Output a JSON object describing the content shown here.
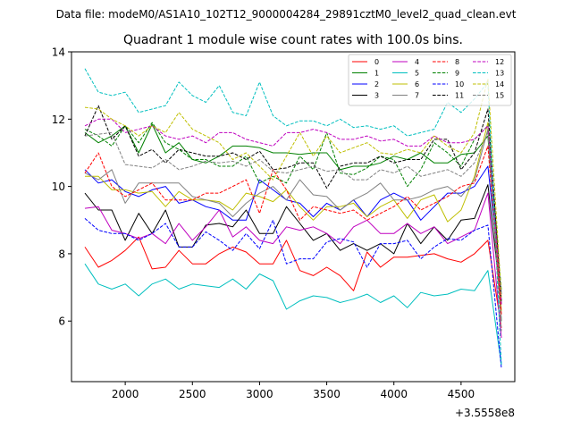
{
  "chart_data": {
    "type": "line",
    "suptitle": "Data file: modeM0/AS1A10_102T12_9000004284_29891cztM0_level2_quad_clean.evt",
    "title": "Quadrant 1 module wise count rates with 100.0s bins.",
    "xlabel": "",
    "ylabel": "",
    "x_offset_label": "+3.5558e8",
    "xlim": [
      1600,
      4900
    ],
    "ylim": [
      4.2,
      14.0
    ],
    "x_ticks": [
      2000,
      2500,
      3000,
      3500,
      4000,
      4500
    ],
    "x_tick_labels": [
      "2000",
      "2500",
      "3000",
      "3500",
      "4000",
      "4500"
    ],
    "y_ticks": [
      6,
      8,
      10,
      12,
      14
    ],
    "y_tick_labels": [
      "6",
      "8",
      "10",
      "12",
      "14"
    ],
    "grid": false,
    "legend_position": "top-right",
    "x": [
      1700,
      1800,
      1900,
      2000,
      2100,
      2200,
      2300,
      2400,
      2500,
      2600,
      2700,
      2800,
      2900,
      3000,
      3100,
      3200,
      3300,
      3400,
      3500,
      3600,
      3700,
      3800,
      3900,
      4000,
      4100,
      4200,
      4300,
      4400,
      4500,
      4600,
      4700,
      4800
    ],
    "series": [
      {
        "name": "0",
        "color": "#ff0000",
        "dash": "solid",
        "values": [
          8.2,
          7.6,
          7.8,
          8.1,
          8.5,
          7.55,
          7.6,
          8.1,
          7.7,
          7.7,
          8.0,
          8.2,
          8.05,
          7.7,
          7.7,
          8.4,
          7.5,
          7.35,
          7.6,
          7.35,
          6.9,
          8.05,
          7.6,
          7.9,
          7.9,
          7.95,
          8.0,
          7.85,
          7.75,
          8.0,
          8.4,
          5.8
        ]
      },
      {
        "name": "1",
        "color": "#008000",
        "dash": "solid",
        "values": [
          11.6,
          11.3,
          11.5,
          11.8,
          11.0,
          11.85,
          11.0,
          11.3,
          10.8,
          10.7,
          10.9,
          11.2,
          11.2,
          11.15,
          11.0,
          11.0,
          10.95,
          11.0,
          11.0,
          10.5,
          10.6,
          10.6,
          10.7,
          10.9,
          10.8,
          11.0,
          10.7,
          10.7,
          10.95,
          11.0,
          11.5,
          6.0
        ]
      },
      {
        "name": "2",
        "color": "#0000ff",
        "dash": "solid",
        "values": [
          10.5,
          10.1,
          10.2,
          9.85,
          9.7,
          9.9,
          10.0,
          9.5,
          9.6,
          9.4,
          9.3,
          9.0,
          9.0,
          10.2,
          9.9,
          9.6,
          9.5,
          9.1,
          9.5,
          9.3,
          9.6,
          9.1,
          9.6,
          9.8,
          9.6,
          9.0,
          9.4,
          9.8,
          9.8,
          10.0,
          10.6,
          6.8
        ]
      },
      {
        "name": "3",
        "color": "#000000",
        "dash": "solid",
        "values": [
          9.8,
          9.3,
          9.3,
          8.4,
          9.2,
          8.6,
          9.3,
          8.2,
          8.2,
          8.85,
          8.9,
          8.8,
          9.3,
          8.6,
          8.6,
          9.4,
          8.9,
          8.4,
          8.6,
          8.1,
          8.3,
          8.1,
          8.3,
          8.0,
          8.9,
          8.3,
          8.8,
          8.4,
          9.0,
          9.05,
          10.05,
          6.5
        ]
      },
      {
        "name": "4",
        "color": "#bf00bf",
        "dash": "solid",
        "values": [
          9.35,
          9.4,
          8.7,
          8.6,
          8.45,
          8.6,
          8.3,
          8.9,
          8.4,
          8.8,
          9.3,
          8.5,
          8.8,
          8.4,
          8.3,
          8.8,
          8.7,
          8.8,
          8.6,
          8.3,
          8.8,
          9.0,
          8.6,
          8.6,
          8.9,
          8.6,
          8.8,
          8.3,
          8.5,
          8.7,
          9.8,
          5.5
        ]
      },
      {
        "name": "5",
        "color": "#00bfbf",
        "dash": "solid",
        "values": [
          7.7,
          7.1,
          6.95,
          7.1,
          6.75,
          7.1,
          7.25,
          6.95,
          7.1,
          7.05,
          7.0,
          7.25,
          6.95,
          7.4,
          7.2,
          6.35,
          6.6,
          6.75,
          6.7,
          6.55,
          6.65,
          6.8,
          6.55,
          6.75,
          6.4,
          6.85,
          6.75,
          6.8,
          6.95,
          6.9,
          7.5,
          4.7
        ]
      },
      {
        "name": "6",
        "color": "#bfbf00",
        "dash": "solid",
        "values": [
          10.3,
          10.3,
          9.9,
          9.9,
          9.8,
          9.85,
          9.4,
          9.85,
          9.6,
          9.6,
          9.55,
          9.3,
          9.8,
          9.7,
          9.55,
          9.9,
          9.4,
          9.0,
          9.4,
          9.4,
          9.5,
          9.1,
          9.4,
          9.6,
          9.05,
          9.6,
          9.75,
          8.95,
          9.3,
          10.3,
          11.9,
          6.3
        ]
      },
      {
        "name": "7",
        "color": "#808080",
        "dash": "solid",
        "values": [
          10.4,
          10.2,
          10.5,
          9.5,
          10.1,
          10.1,
          10.1,
          10.1,
          9.7,
          9.6,
          9.5,
          9.1,
          9.5,
          9.8,
          10.0,
          9.6,
          10.2,
          9.75,
          9.7,
          9.3,
          9.6,
          9.8,
          10.1,
          9.6,
          9.6,
          9.7,
          9.9,
          10.0,
          9.7,
          10.2,
          11.7,
          6.0
        ]
      },
      {
        "name": "8",
        "color": "#ff0000",
        "dash": "dashed",
        "values": [
          10.4,
          11.0,
          10.0,
          9.7,
          9.9,
          10.1,
          9.6,
          9.6,
          9.6,
          9.8,
          9.8,
          10.0,
          10.2,
          9.2,
          10.5,
          9.9,
          9.0,
          9.4,
          9.3,
          9.2,
          9.3,
          9.0,
          9.2,
          9.4,
          9.7,
          9.3,
          9.5,
          9.7,
          10.0,
          10.1,
          11.2,
          6.2
        ]
      },
      {
        "name": "9",
        "color": "#008000",
        "dash": "dashed",
        "values": [
          11.7,
          11.5,
          11.2,
          11.8,
          11.3,
          11.9,
          11.3,
          11.1,
          10.8,
          10.8,
          10.6,
          10.6,
          10.9,
          10.1,
          10.3,
          10.1,
          10.9,
          10.5,
          11.6,
          10.4,
          10.35,
          10.55,
          10.9,
          10.8,
          10.0,
          10.5,
          11.3,
          11.0,
          10.6,
          11.4,
          11.8,
          6.9
        ]
      },
      {
        "name": "10",
        "color": "#0000ff",
        "dash": "dashed",
        "values": [
          9.05,
          8.7,
          8.6,
          8.6,
          8.4,
          8.6,
          8.9,
          8.2,
          8.2,
          8.65,
          8.4,
          8.1,
          8.6,
          8.15,
          9.0,
          7.7,
          7.85,
          7.85,
          8.35,
          8.45,
          8.35,
          7.6,
          8.3,
          8.3,
          8.4,
          7.85,
          8.2,
          8.45,
          8.4,
          8.7,
          8.85,
          4.6
        ]
      },
      {
        "name": "11",
        "color": "#000000",
        "dash": "dashed",
        "values": [
          11.5,
          12.4,
          11.4,
          11.8,
          10.9,
          11.1,
          10.7,
          11.1,
          11.0,
          10.9,
          10.9,
          11.0,
          10.8,
          11.05,
          10.5,
          10.55,
          10.7,
          10.7,
          9.95,
          10.6,
          10.7,
          10.7,
          10.9,
          10.7,
          10.8,
          10.8,
          11.4,
          11.4,
          10.5,
          11.0,
          12.3,
          6.6
        ]
      },
      {
        "name": "12",
        "color": "#bf00bf",
        "dash": "dashed",
        "values": [
          11.8,
          12.0,
          12.0,
          11.6,
          11.7,
          11.8,
          11.5,
          11.4,
          11.5,
          11.3,
          11.6,
          11.6,
          11.4,
          11.3,
          11.2,
          11.6,
          11.6,
          11.7,
          11.6,
          11.4,
          11.4,
          11.5,
          11.35,
          11.4,
          11.2,
          11.2,
          11.5,
          11.3,
          11.3,
          11.4,
          11.8,
          6.5
        ]
      },
      {
        "name": "13",
        "color": "#00bfbf",
        "dash": "dashed",
        "values": [
          13.5,
          12.8,
          12.7,
          12.8,
          12.2,
          12.3,
          12.4,
          13.1,
          12.7,
          12.5,
          13.0,
          12.2,
          12.1,
          13.1,
          12.1,
          11.8,
          11.95,
          11.95,
          11.8,
          12.0,
          11.75,
          11.8,
          11.7,
          11.8,
          11.5,
          11.6,
          11.7,
          12.5,
          12.2,
          12.6,
          13.1,
          4.7
        ]
      },
      {
        "name": "14",
        "color": "#bfbf00",
        "dash": "dashed",
        "values": [
          12.35,
          12.3,
          12.0,
          11.8,
          11.5,
          11.8,
          11.6,
          12.2,
          11.7,
          11.5,
          11.3,
          10.8,
          11.0,
          10.6,
          10.2,
          10.9,
          11.6,
          10.9,
          11.5,
          11.0,
          11.15,
          11.3,
          11.0,
          10.95,
          11.1,
          11.0,
          11.5,
          11.2,
          11.0,
          11.6,
          13.2,
          6.7
        ]
      },
      {
        "name": "15",
        "color": "#808080",
        "dash": "dashed",
        "values": [
          11.5,
          11.55,
          11.6,
          10.65,
          10.6,
          10.55,
          10.8,
          10.5,
          10.6,
          10.75,
          10.7,
          10.75,
          10.6,
          10.8,
          10.45,
          10.4,
          10.5,
          10.6,
          10.45,
          10.5,
          10.2,
          10.2,
          10.5,
          10.4,
          10.6,
          10.3,
          10.4,
          10.5,
          10.3,
          10.7,
          11.6,
          5.7
        ]
      }
    ]
  }
}
